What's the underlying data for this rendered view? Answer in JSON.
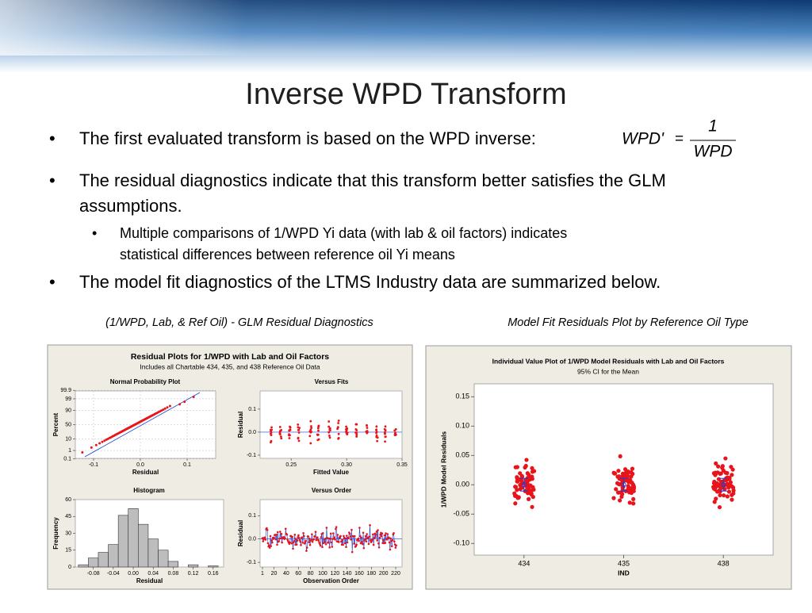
{
  "header": {
    "title": "Inverse WPD Transform"
  },
  "bullets": [
    {
      "text": "The first evaluated transform is based on the WPD inverse:",
      "formula": {
        "lhs": "WPD'",
        "eq": "=",
        "num": "1",
        "den": "WPD"
      }
    },
    {
      "lines": [
        "The residual diagnostics indicate that this transform better satisfies the GLM",
        "assumptions."
      ]
    },
    {
      "lines": [
        "Multiple comparisons of 1/WPD Yi data (with lab & oil factors) indicates",
        "statistical differences between reference oil Yi means"
      ]
    },
    {
      "lines": [
        "The model fit diagnostics of the LTMS Industry data are summarized below."
      ]
    }
  ],
  "captions": [
    "(1/WPD, Lab, & Ref Oil) - GLM  Residual Diagnostics",
    "Model Fit Residuals Plot by Reference Oil Type"
  ],
  "left_panel": {
    "title": "Residual Plots for 1/WPD with Lab and Oil Factors",
    "subtitle": "Includes all Chartable 434, 435, and 438 Reference Oil Data",
    "plots": [
      {
        "type": "probability",
        "title": "Normal Probability Plot",
        "xlabel": "Residual",
        "ylabel": "Percent",
        "xlim": [
          -0.139,
          0.161
        ],
        "xticks": [
          -0.1,
          {
            "value": 0,
            "label": "0.0"
          },
          0.1
        ],
        "yticks": [
          99.9,
          99,
          90,
          50,
          10,
          1,
          0.1
        ]
      },
      {
        "type": "fits",
        "title": "Versus Fits",
        "xlabel": "Fitted Value",
        "ylabel": "Residual",
        "xlim": [
          0.222,
          0.35
        ],
        "ylim": [
          -0.114,
          0.179
        ],
        "xticks": [
          0.25,
          {
            "value": 0.3,
            "label": "0.30"
          },
          0.35
        ],
        "yticks": [
          {
            "value": 0.1,
            "label": "0.1"
          },
          {
            "value": 0,
            "label": "0.0"
          },
          {
            "value": -0.1,
            "label": "-0.1"
          }
        ]
      },
      {
        "type": "histogram",
        "title": "Histogram",
        "xlabel": "Residual",
        "ylabel": "Frequency",
        "xlim": [
          -0.116,
          0.181
        ],
        "ylim": [
          0,
          60
        ],
        "bins": [
          -0.11,
          -0.09,
          -0.07,
          -0.05,
          -0.03,
          -0.01,
          0.01,
          0.03,
          0.05,
          0.07,
          0.09,
          0.11,
          0.13,
          0.15,
          0.17
        ],
        "values": [
          2,
          8,
          13,
          20,
          46,
          52,
          38,
          25,
          15,
          5,
          0,
          2,
          0,
          1
        ],
        "xticks": [
          -0.08,
          -0.04,
          {
            "value": 0,
            "label": "0.00"
          },
          0.04,
          0.08,
          0.12,
          0.16
        ],
        "yticks": [
          0,
          15,
          30,
          45,
          60
        ]
      },
      {
        "type": "order",
        "title": "Versus Order",
        "xlabel": "Observation Order",
        "ylabel": "Residual",
        "xlim": [
          -2.9,
          230.4
        ],
        "ylim": [
          -0.12,
          0.169
        ],
        "xticks": [
          1,
          20,
          40,
          60,
          80,
          100,
          120,
          140,
          160,
          180,
          200,
          220
        ],
        "yticks": [
          {
            "value": 0.1,
            "label": "0.1"
          },
          {
            "value": 0,
            "label": "0.0"
          },
          {
            "value": -0.1,
            "label": "-0.1"
          }
        ]
      }
    ]
  },
  "right_panel": {
    "title": "Individual Value Plot of 1/WPD Model Residuals with Lab and Oil Factors",
    "subtitle": "95% CI for the Mean",
    "xlabel": "IND",
    "ylabel": "1/WPD Model Residuals",
    "categories": [
      "434",
      "435",
      "438"
    ],
    "ylim": [
      -0.12,
      0.172
    ],
    "yticks": [
      0.15,
      {
        "value": 0.1,
        "label": "0.10"
      },
      0.05,
      {
        "value": 0,
        "label": "0.00"
      },
      -0.05,
      {
        "value": -0.1,
        "label": "-0.10"
      }
    ]
  }
}
